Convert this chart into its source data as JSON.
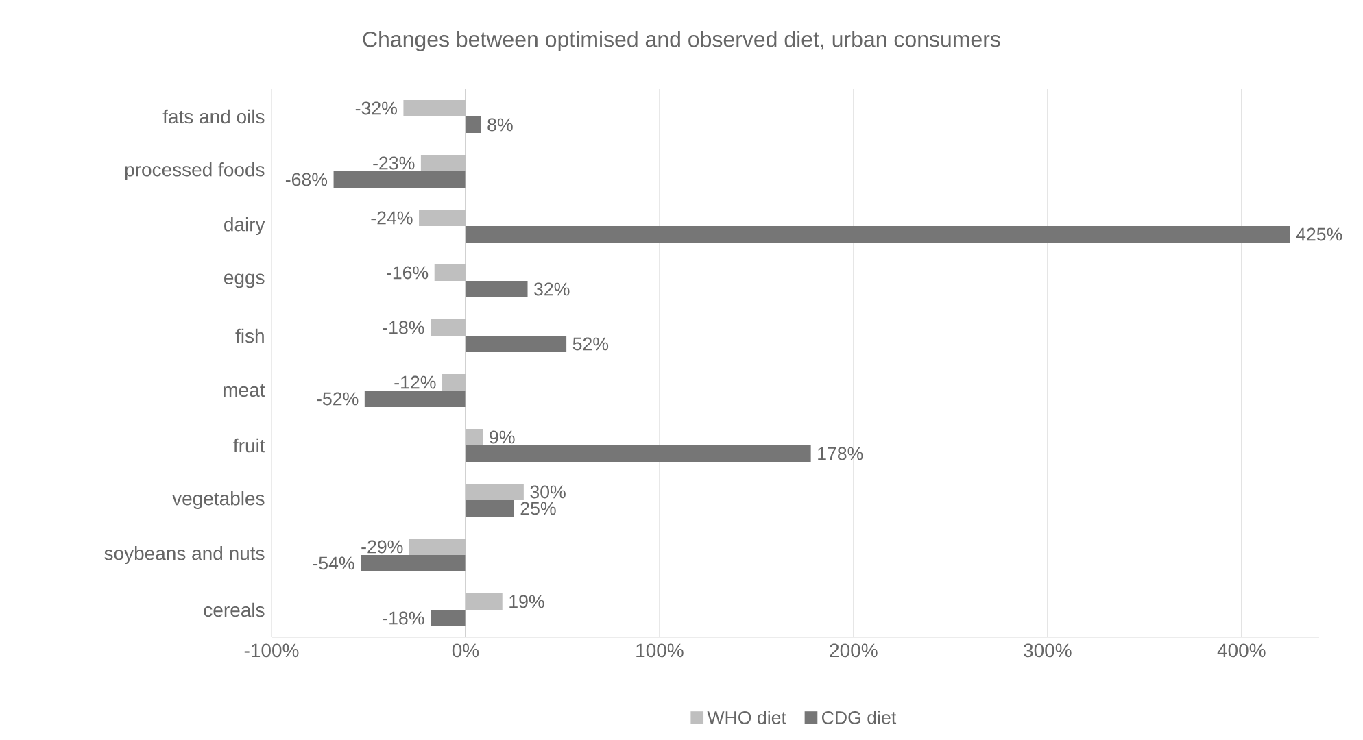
{
  "chart_data": {
    "type": "bar",
    "orientation": "horizontal",
    "title": "Changes between optimised and observed diet, urban consumers",
    "categories": [
      "fats and oils",
      "processed foods",
      "dairy",
      "eggs",
      "fish",
      "meat",
      "fruit",
      "vegetables",
      "soybeans and nuts",
      "cereals"
    ],
    "series": [
      {
        "name": "WHO diet",
        "color": "#bfbfbf",
        "values": [
          -32,
          -23,
          -24,
          -16,
          -18,
          -12,
          9,
          30,
          -29,
          19
        ],
        "value_labels": [
          "-32%",
          "-23%",
          "-24%",
          "-16%",
          "-18%",
          "-12%",
          "9%",
          "30%",
          "-29%",
          "19%"
        ]
      },
      {
        "name": "CDG diet",
        "color": "#767676",
        "values": [
          8,
          -68,
          425,
          32,
          52,
          -52,
          178,
          25,
          -54,
          -18
        ],
        "value_labels": [
          "8%",
          "-68%",
          "425%",
          "32%",
          "52%",
          "-52%",
          "178%",
          "25%",
          "-54%",
          "-18%"
        ]
      }
    ],
    "xlim": [
      -100,
      440
    ],
    "xticks": [
      {
        "value": -100,
        "label": "-100%"
      },
      {
        "value": 0,
        "label": "0%"
      },
      {
        "value": 100,
        "label": "100%"
      },
      {
        "value": 200,
        "label": "200%"
      },
      {
        "value": 300,
        "label": "300%"
      },
      {
        "value": 400,
        "label": "400%"
      }
    ],
    "grid": "x",
    "legend": "bottom"
  }
}
